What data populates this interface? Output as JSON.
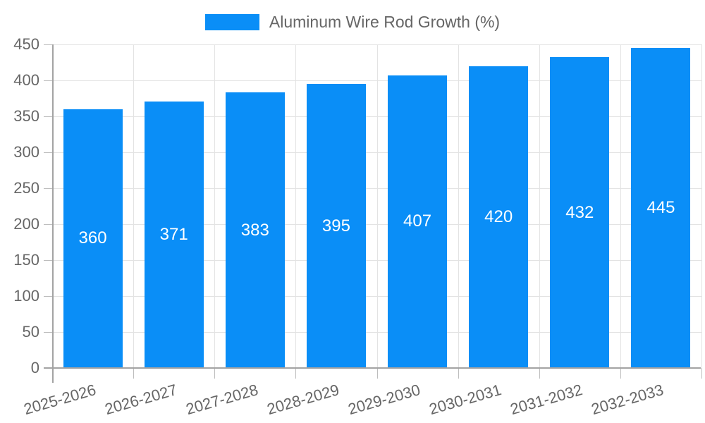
{
  "legend": {
    "label": "Aluminum Wire Rod Growth (%)"
  },
  "chart_data": {
    "type": "bar",
    "title": "Aluminum Wire Rod Growth (%)",
    "categories": [
      "2025-2026",
      "2026-2027",
      "2027-2028",
      "2028-2029",
      "2029-2030",
      "2030-2031",
      "2031-2032",
      "2032-2033"
    ],
    "values": [
      360,
      371,
      383,
      395,
      407,
      420,
      432,
      445
    ],
    "value_labels": [
      "360",
      "371",
      "383",
      "395",
      "407",
      "420",
      "432",
      "445"
    ],
    "xlabel": "",
    "ylabel": "",
    "ylim": [
      0,
      450
    ],
    "yticks": [
      0,
      50,
      100,
      150,
      200,
      250,
      300,
      350,
      400,
      450
    ],
    "grid": true,
    "legend_position": "top-center",
    "x_label_rotation_deg": -16
  },
  "colors": {
    "bar": "#0a8ef7",
    "bar_value_text": "#ffffff",
    "gridline": "#e3e3e3",
    "tick_mark": "#bdbdbd",
    "axis_line": "#a3a3a3",
    "tick_text": "#666666",
    "legend_text": "#666666",
    "background": "#ffffff"
  }
}
